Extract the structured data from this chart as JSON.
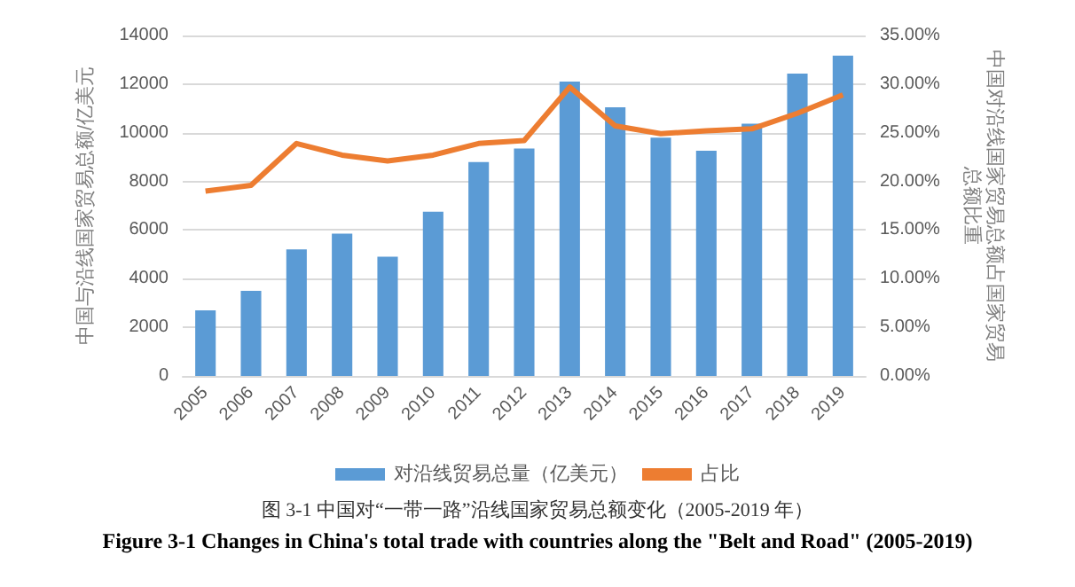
{
  "chart_data": {
    "type": "bar",
    "categories": [
      "2005",
      "2006",
      "2007",
      "2008",
      "2009",
      "2010",
      "2011",
      "2012",
      "2013",
      "2014",
      "2015",
      "2016",
      "2017",
      "2018",
      "2019"
    ],
    "series": [
      {
        "name": "对沿线贸易总量（亿美元）",
        "color": "#5b9bd5",
        "values": [
          2700,
          3500,
          5200,
          5850,
          4900,
          6750,
          8800,
          9350,
          12100,
          11050,
          9800,
          9260,
          10370,
          12430,
          13170
        ]
      },
      {
        "name": "占比",
        "type": "line",
        "axis": "y2",
        "color": "#ed7d31",
        "values": [
          19.0,
          19.6,
          23.9,
          22.7,
          22.1,
          22.7,
          23.9,
          24.2,
          29.7,
          25.7,
          24.9,
          25.2,
          25.4,
          27.0,
          28.9
        ]
      }
    ],
    "ylabel": "中国与沿线国家贸易总额/亿美元",
    "y2label": "中国对沿线国家贸易总额占国家贸易总额比重",
    "ylim": [
      0,
      14000
    ],
    "yticks": [
      0,
      2000,
      4000,
      6000,
      8000,
      10000,
      12000,
      14000
    ],
    "y2lim": [
      0,
      35
    ],
    "y2ticks": [
      {
        "value": 0,
        "label": "0.00%"
      },
      {
        "value": 5,
        "label": "5.00%"
      },
      {
        "value": 10,
        "label": "10.00%"
      },
      {
        "value": 15,
        "label": "15.00%"
      },
      {
        "value": 20,
        "label": "20.00%"
      },
      {
        "value": 25,
        "label": "25.00%"
      },
      {
        "value": 30,
        "label": "30.00%"
      },
      {
        "value": 35,
        "label": "35.00%"
      }
    ],
    "grid": "y",
    "legend": "bottom",
    "marker": "none",
    "annotations": [
      "图 3-1 中国对“一带一路”沿线国家贸易总额变化（2005-2019 年）",
      "Figure 3-1 Changes in China's total trade with countries along the \"Belt and Road\" (2005-2019)"
    ]
  }
}
